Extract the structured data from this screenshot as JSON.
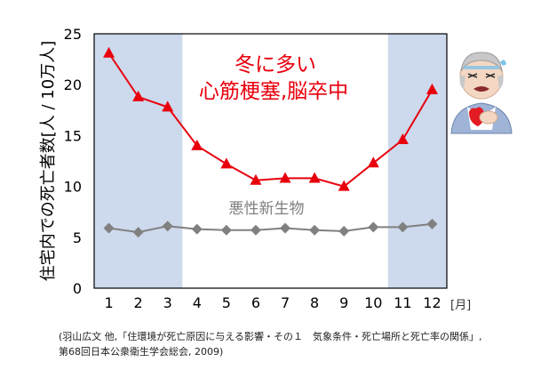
{
  "chart_data": {
    "type": "line",
    "ylabel": "住宅内での死亡者数[人 / 10万人]",
    "x_unit_label": "[月]",
    "categories": [
      "1",
      "2",
      "3",
      "4",
      "5",
      "6",
      "7",
      "8",
      "9",
      "10",
      "11",
      "12"
    ],
    "ylim": [
      0,
      25
    ],
    "yticks": [
      "0",
      "5",
      "10",
      "15",
      "20",
      "25"
    ],
    "shaded_months": [
      1,
      2,
      3,
      11,
      12
    ],
    "series": [
      {
        "name": "冬に多い 心筋梗塞,脳卒中",
        "color": "#e8000d",
        "marker": "triangle",
        "values": [
          23.1,
          18.8,
          17.8,
          14.0,
          12.2,
          10.6,
          10.8,
          10.8,
          10.0,
          12.3,
          14.6,
          19.5
        ]
      },
      {
        "name": "悪性新生物",
        "color": "#808080",
        "marker": "diamond",
        "values": [
          5.9,
          5.5,
          6.1,
          5.8,
          5.7,
          5.7,
          5.9,
          5.7,
          5.6,
          6.0,
          6.0,
          6.3
        ]
      }
    ],
    "annotations": {
      "red_line1": "冬に多い",
      "red_line2": "心筋梗塞,脳卒中",
      "gray": "悪性新生物"
    },
    "colors": {
      "shading": "#cdd9ec",
      "red": "#e8000d",
      "gray": "#808080"
    }
  },
  "illustration": {
    "icon": "elderly-man-chest-pain-icon"
  },
  "citation": {
    "line1": "(羽山広文 他,「住環境が死亡原因に与える影響・その１　気象条件・死亡場所と死亡率の関係」,",
    "line2": "第68回日本公衆衛生学会総会, 2009)"
  }
}
